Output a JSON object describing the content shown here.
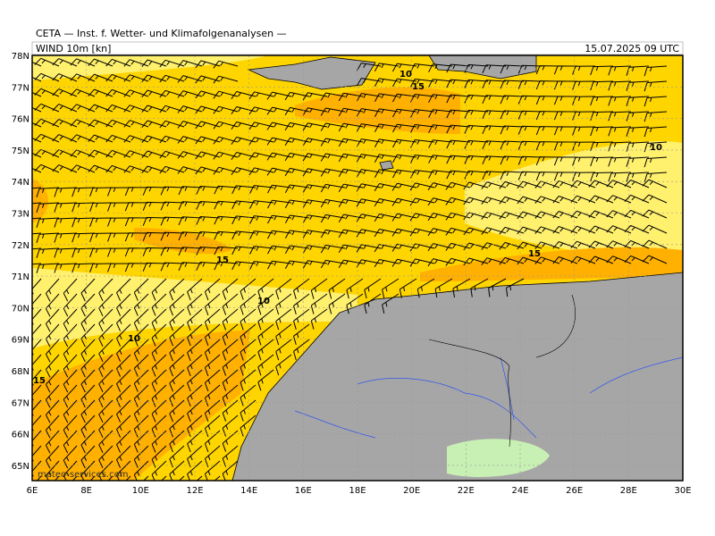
{
  "header": {
    "title": "CETA — Inst. f. Wetter- und Klimafolgenanalysen —",
    "subtitle": "WIND 10m [kn]",
    "timestamp": "15.07.2025 09 UTC"
  },
  "map": {
    "lat_labels": [
      "78N",
      "77N",
      "76N",
      "75N",
      "74N",
      "73N",
      "72N",
      "71N",
      "70N",
      "69N",
      "68N",
      "67N",
      "66N",
      "65N"
    ],
    "lon_labels": [
      "6E",
      "8E",
      "10E",
      "12E",
      "14E",
      "16E",
      "18E",
      "20E",
      "22E",
      "24E",
      "26E",
      "28E",
      "30E"
    ],
    "contour_labels": [
      "10",
      "15",
      "10",
      "15",
      "15",
      "10",
      "10",
      "15"
    ],
    "watermark": "meteo-services.com"
  }
}
